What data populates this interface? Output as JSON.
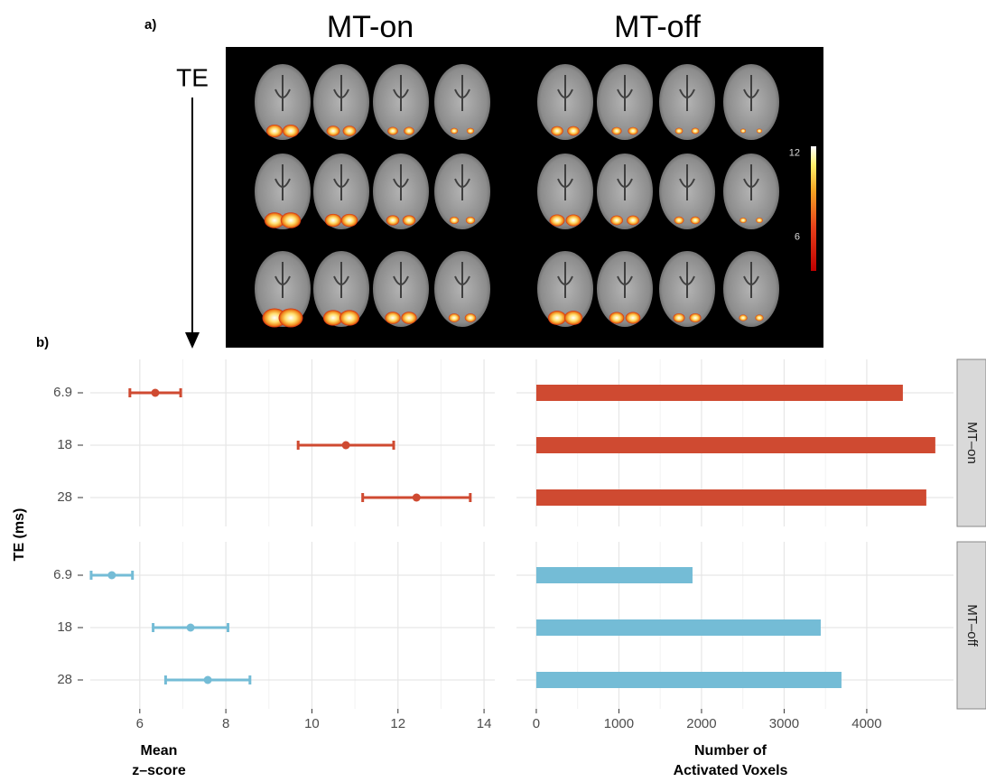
{
  "panel_a": {
    "label": "a)",
    "titles": [
      "MT-on",
      "MT-off"
    ],
    "arrow_label": "TE",
    "colorbar": {
      "lim": [
        3.6,
        12.5
      ],
      "ticks": [
        6,
        12
      ]
    }
  },
  "panel_b_label": "b)",
  "chart_data": [
    {
      "type": "errorbar",
      "ylabel": "TE (ms)",
      "xlabel": [
        "Mean",
        "z–score"
      ],
      "categories": [
        "6.9",
        "18",
        "28"
      ],
      "series": [
        {
          "color": "#cf4a31",
          "values": [
            6.36,
            10.79,
            12.43
          ],
          "errors": [
            0.59,
            1.11,
            1.25
          ]
        },
        {
          "color": "#74bcd6",
          "values": [
            5.35,
            7.18,
            7.58
          ],
          "errors": [
            0.48,
            0.87,
            0.98
          ]
        }
      ],
      "xlim": [
        4.85,
        14.25
      ],
      "xticks": [
        6,
        8,
        10,
        12,
        14
      ],
      "grid": true
    },
    {
      "type": "bar",
      "xlabel": [
        "Number of",
        "Activated Voxels"
      ],
      "series": [
        {
          "name": "MT–on",
          "color": "#cf4a31",
          "values": [
            4437,
            4830,
            4721
          ]
        },
        {
          "name": "MT–off",
          "color": "#74bcd6",
          "values": [
            1891,
            3443,
            3694
          ]
        }
      ],
      "xlim": [
        -240,
        5050
      ],
      "xticks": [
        0,
        1000,
        2000,
        3000,
        4000
      ],
      "grid": true
    }
  ]
}
